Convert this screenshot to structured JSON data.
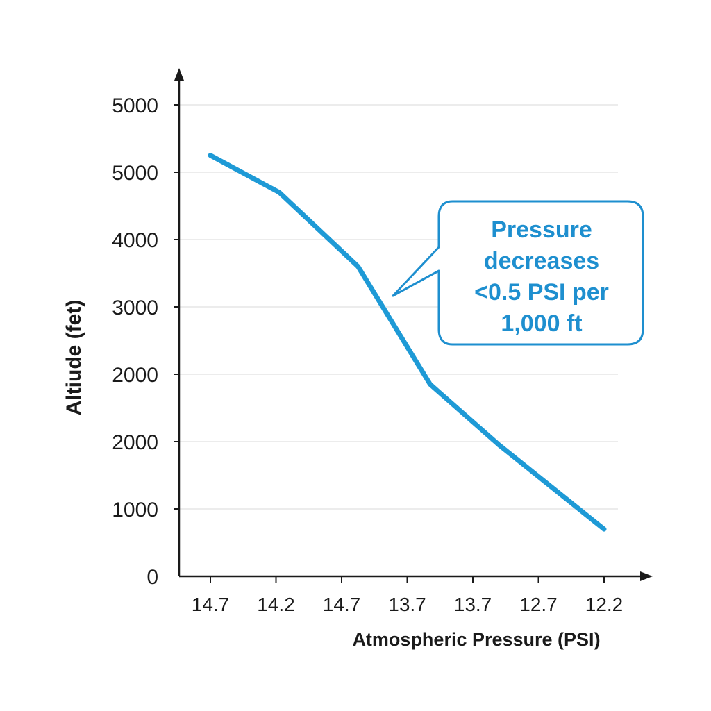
{
  "chart_data": {
    "type": "line",
    "title": "",
    "xlabel": "Atmospheric Pressure (PSI)",
    "ylabel": "Altiude (fet)",
    "x_tick_labels": [
      "14.7",
      "14.2",
      "14.7",
      "13.7",
      "13.7",
      "12.7",
      "12.2"
    ],
    "y_tick_labels": [
      "0",
      "1000",
      "2000",
      "2000",
      "3000",
      "4000",
      "5000",
      "5000"
    ],
    "grid": true,
    "series": [
      {
        "color": "#1e9ad6",
        "points": [
          {
            "x_pos": 0,
            "y_pos": 6.25
          },
          {
            "x_pos": 1.05,
            "y_pos": 5.7
          },
          {
            "x_pos": 2.25,
            "y_pos": 4.6
          },
          {
            "x_pos": 3.35,
            "y_pos": 2.85
          },
          {
            "x_pos": 4.4,
            "y_pos": 1.95
          },
          {
            "x_pos": 6.0,
            "y_pos": 0.7
          }
        ]
      }
    ],
    "annotations": [
      {
        "lines": [
          "Pressure",
          "decreases",
          "<0.5 PSI per",
          "1,000 ft"
        ],
        "color": "#1e8fcf"
      }
    ]
  }
}
